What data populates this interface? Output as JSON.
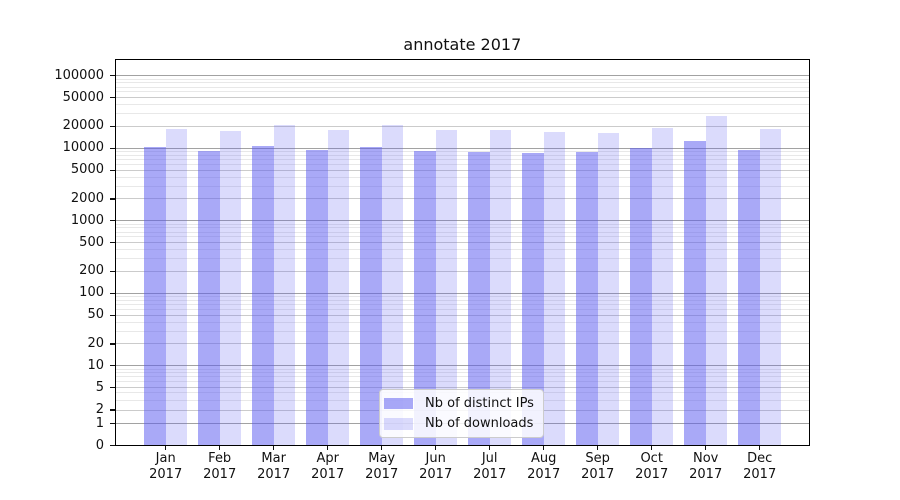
{
  "title": "annotate 2017",
  "chart_data": {
    "type": "bar",
    "title": "annotate 2017",
    "categories": [
      "Jan",
      "Feb",
      "Mar",
      "Apr",
      "May",
      "Jun",
      "Jul",
      "Aug",
      "Sep",
      "Oct",
      "Nov",
      "Dec"
    ],
    "year": "2017",
    "series": [
      {
        "name": "Nb of distinct IPs",
        "values": [
          10400,
          9200,
          10700,
          9500,
          10400,
          9100,
          8900,
          8700,
          8800,
          10000,
          12600,
          9500
        ]
      },
      {
        "name": "Nb of downloads",
        "values": [
          18500,
          17100,
          21000,
          17900,
          21100,
          17900,
          18000,
          16600,
          16500,
          19300,
          28200,
          18500
        ]
      }
    ],
    "yscale": "symlog",
    "y_ticks": [
      0,
      1,
      2,
      5,
      10,
      20,
      50,
      100,
      200,
      500,
      1000,
      2000,
      5000,
      10000,
      20000,
      50000,
      100000
    ],
    "ylim": [
      0,
      200000
    ],
    "grid": true,
    "legend_position": "lower center"
  },
  "colors": {
    "bar_fill": "#5a5af0",
    "ips_alpha": 0.52,
    "downloads_alpha": 0.22,
    "grid_decade": "#a2a2a2",
    "grid_step": "#cbcbcb",
    "grid_minor": "#e8e8e8",
    "spine": "#000000",
    "text": "#111111",
    "legend_border": "#cccccc"
  }
}
